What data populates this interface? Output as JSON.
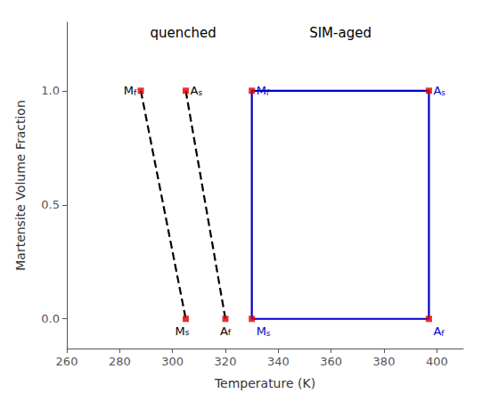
{
  "chart_data": {
    "type": "line",
    "xlabel": "Temperature (K)",
    "ylabel": "Martensite Volume Fraction",
    "xlim": [
      260,
      410
    ],
    "ylim": [
      -0.13,
      1.3
    ],
    "xticks": [
      260,
      280,
      300,
      320,
      340,
      360,
      380,
      400
    ],
    "yticks": [
      {
        "value": 0.0,
        "label": "0.0"
      },
      0.5,
      {
        "value": 1.0,
        "label": "1.0"
      }
    ],
    "grid": false,
    "series": [
      {
        "name": "quenched",
        "type": "line",
        "color": "black",
        "line_style": "dashed",
        "x": [
          288,
          305,
          null,
          305,
          320
        ],
        "y": [
          1.0,
          0.0,
          null,
          1.0,
          0.0
        ],
        "point_labels": [
          "Mf",
          "Ms",
          null,
          "As",
          "Af"
        ]
      },
      {
        "name": "SIM-aged",
        "type": "line",
        "color": "#0000cc",
        "line_style": "solid",
        "x": [
          330,
          397,
          397,
          330,
          330
        ],
        "y": [
          1.0,
          1.0,
          0.0,
          0.0,
          1.0
        ],
        "point_labels": [
          "Mf",
          "As",
          "Af",
          "Ms",
          null
        ]
      },
      {
        "type": "scatter",
        "color": "#dd0000",
        "marker": "square",
        "x": [
          288,
          305,
          305,
          320,
          330,
          330,
          397,
          397
        ],
        "y": [
          1.0,
          0.0,
          1.0,
          0.0,
          1.0,
          0.0,
          1.0,
          0.0
        ]
      }
    ]
  }
}
